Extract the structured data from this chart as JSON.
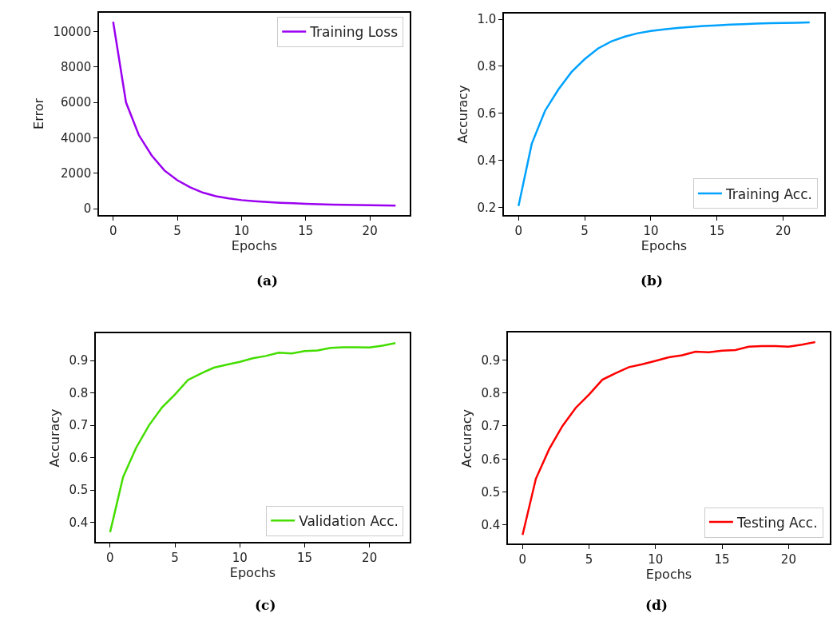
{
  "chart_data": [
    {
      "type": "line",
      "xlabel": "Epochs",
      "ylabel": "Error",
      "annotations": [
        "(a)"
      ],
      "legend": "top right",
      "x": [
        0,
        1,
        2,
        3,
        4,
        5,
        6,
        7,
        8,
        9,
        10,
        11,
        12,
        13,
        14,
        15,
        16,
        17,
        18,
        19,
        20,
        21,
        22
      ],
      "xlim": [
        -1.1,
        23.1
      ],
      "xticks": [
        0,
        5,
        10,
        15,
        20
      ],
      "ylim": [
        -360,
        11060
      ],
      "yticks": [
        0,
        2000,
        4000,
        6000,
        8000,
        10000
      ],
      "series": [
        {
          "name": "Training Loss",
          "color": "#9b00f0",
          "values": [
            10550,
            6000,
            4150,
            3000,
            2150,
            1600,
            1200,
            900,
            700,
            580,
            480,
            420,
            370,
            330,
            300,
            270,
            250,
            230,
            210,
            200,
            190,
            180,
            170
          ]
        }
      ]
    },
    {
      "type": "line",
      "xlabel": "Epochs",
      "ylabel": "Accuracy",
      "annotations": [
        "(b)"
      ],
      "legend": "bottom right",
      "x": [
        0,
        1,
        2,
        3,
        4,
        5,
        6,
        7,
        8,
        9,
        10,
        11,
        12,
        13,
        14,
        15,
        16,
        17,
        18,
        19,
        20,
        21,
        22
      ],
      "xlim": [
        -1.1,
        23.1
      ],
      "xticks": [
        0,
        5,
        10,
        15,
        20
      ],
      "ylim": [
        0.167,
        1.024
      ],
      "yticks": [
        {
          "value": 0.2,
          "label": "0.2"
        },
        {
          "value": 0.4,
          "label": "0.4"
        },
        {
          "value": 0.6,
          "label": "0.6"
        },
        {
          "value": 0.8,
          "label": "0.8"
        },
        {
          "value": 1.0,
          "label": "1.0"
        }
      ],
      "series": [
        {
          "name": "Training Acc.",
          "color": "#00a2ff",
          "values": [
            0.205,
            0.47,
            0.61,
            0.7,
            0.775,
            0.83,
            0.875,
            0.905,
            0.925,
            0.94,
            0.95,
            0.957,
            0.963,
            0.967,
            0.971,
            0.974,
            0.977,
            0.979,
            0.981,
            0.983,
            0.984,
            0.985,
            0.986
          ]
        }
      ]
    },
    {
      "type": "line",
      "xlabel": "Epochs",
      "ylabel": "Accuracy",
      "annotations": [
        "(c)"
      ],
      "legend": "bottom right",
      "x": [
        0,
        1,
        2,
        3,
        4,
        5,
        6,
        7,
        8,
        9,
        10,
        11,
        12,
        13,
        14,
        15,
        16,
        17,
        18,
        19,
        20,
        21,
        22
      ],
      "xlim": [
        -1.1,
        23.1
      ],
      "xticks": [
        0,
        5,
        10,
        15,
        20
      ],
      "ylim": [
        0.339,
        0.983
      ],
      "yticks": [
        0.4,
        0.5,
        0.6,
        0.7,
        0.8,
        0.9
      ],
      "series": [
        {
          "name": "Validation Acc.",
          "color": "#44dd00",
          "values": [
            0.37,
            0.54,
            0.63,
            0.7,
            0.755,
            0.795,
            0.84,
            0.86,
            0.878,
            0.887,
            0.896,
            0.907,
            0.914,
            0.924,
            0.922,
            0.929,
            0.931,
            0.939,
            0.941,
            0.941,
            0.94,
            0.946,
            0.954
          ]
        }
      ]
    },
    {
      "type": "line",
      "xlabel": "Epochs",
      "ylabel": "Accuracy",
      "annotations": [
        "(d)"
      ],
      "legend": "bottom right",
      "x": [
        0,
        1,
        2,
        3,
        4,
        5,
        6,
        7,
        8,
        9,
        10,
        11,
        12,
        13,
        14,
        15,
        16,
        17,
        18,
        19,
        20,
        21,
        22
      ],
      "xlim": [
        -1.1,
        23.1
      ],
      "xticks": [
        0,
        5,
        10,
        15,
        20
      ],
      "ylim": [
        0.343,
        0.982
      ],
      "yticks": [
        0.4,
        0.5,
        0.6,
        0.7,
        0.8,
        0.9
      ],
      "series": [
        {
          "name": "Testing Acc.",
          "color": "#ff0000",
          "values": [
            0.37,
            0.54,
            0.63,
            0.7,
            0.755,
            0.795,
            0.84,
            0.86,
            0.878,
            0.887,
            0.897,
            0.908,
            0.914,
            0.925,
            0.923,
            0.928,
            0.93,
            0.94,
            0.942,
            0.942,
            0.94,
            0.946,
            0.954
          ]
        }
      ]
    }
  ]
}
